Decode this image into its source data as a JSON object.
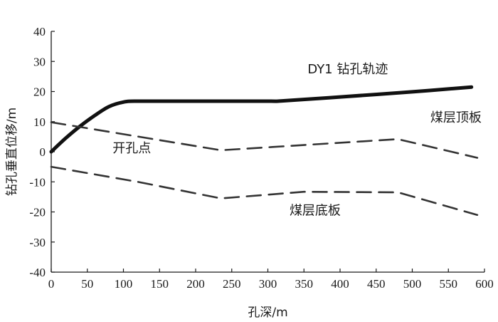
{
  "chart_data": {
    "type": "line",
    "xlabel": "孔深/m",
    "ylabel": "钻孔垂直位移/m",
    "xlim": [
      0,
      600
    ],
    "ylim": [
      -40,
      40
    ],
    "x_ticks": [
      "0",
      "50",
      "100",
      "150",
      "200",
      "250",
      "300",
      "350",
      "400",
      "450",
      "500",
      "550",
      "600"
    ],
    "y_ticks": [
      "40",
      "30",
      "20",
      "10",
      "0",
      "-10",
      "-20",
      "-30",
      "-40"
    ],
    "grid": false,
    "series": [
      {
        "name": "DY1钻孔轨迹",
        "style": "solid",
        "color": "#111111",
        "x": [
          0,
          20,
          40,
          60,
          80,
          100,
          120,
          200,
          300,
          320,
          400,
          500,
          582
        ],
        "y": [
          0,
          4.5,
          8.5,
          12,
          15,
          16.5,
          16.8,
          16.8,
          16.8,
          16.9,
          18.2,
          19.9,
          21.5
        ]
      },
      {
        "name": "煤层顶板",
        "style": "dashed",
        "color": "#333333",
        "x": [
          0,
          235,
          480,
          590
        ],
        "y": [
          9.8,
          0.5,
          4.2,
          -2
        ]
      },
      {
        "name": "煤层底板",
        "style": "dashed",
        "color": "#333333",
        "x": [
          0,
          120,
          235,
          350,
          480,
          590
        ],
        "y": [
          -5,
          -10,
          -15.5,
          -13.3,
          -13.5,
          -21
        ]
      }
    ],
    "annotations": [
      {
        "text": "DY1 钻孔轨迹",
        "x": 355,
        "y": 26
      },
      {
        "text": "煤层顶板",
        "x": 525,
        "y": 10
      },
      {
        "text": "开孔点",
        "x": 85,
        "y": -0.2
      },
      {
        "text": "煤层底板",
        "x": 330,
        "y": -21
      }
    ]
  }
}
